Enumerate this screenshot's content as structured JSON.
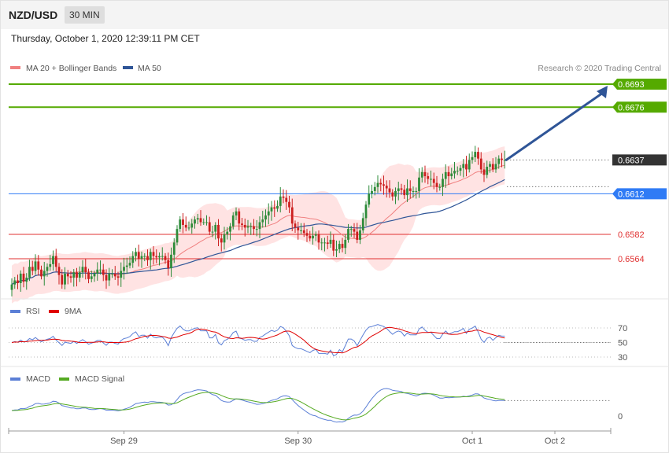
{
  "header": {
    "symbol": "NZD/USD",
    "timeframe": "30 MIN",
    "datetime": "Thursday, October 1, 2020 12:39:11 PM CET"
  },
  "legend": {
    "ma20": {
      "label": "MA 20 + Bollinger Bands",
      "color": "#f08080"
    },
    "ma50": {
      "label": "MA 50",
      "color": "#2f5597"
    },
    "credit": "Research © 2020 Trading Central"
  },
  "rsi_legend": {
    "rsi": {
      "label": "RSI",
      "color": "#5b7fd6"
    },
    "ma9": {
      "label": "9MA",
      "color": "#e00000"
    }
  },
  "macd_legend": {
    "macd": {
      "label": "MACD",
      "color": "#5b7fd6"
    },
    "signal": {
      "label": "MACD Signal",
      "color": "#55aa22"
    }
  },
  "chart_data": [
    {
      "type": "candlestick",
      "panel": "price",
      "series_names": [
        "MA 20 + Bollinger Bands",
        "MA 50"
      ],
      "x_ticks": [
        "Sep 29",
        "Sep 30",
        "Oct 1",
        "Oct 2"
      ],
      "last_price": {
        "label": "0.6637",
        "value": 0.6637,
        "color": "#333333"
      },
      "levels": [
        {
          "label": "0.6693",
          "value": 0.6693,
          "color": "#55aa00",
          "kind": "resistance"
        },
        {
          "label": "0.6676",
          "value": 0.6676,
          "color": "#55aa00",
          "kind": "resistance"
        },
        {
          "label": "0.6612",
          "value": 0.6612,
          "color": "#2f7bf5",
          "kind": "pivot"
        },
        {
          "label": "0.6582",
          "value": 0.6582,
          "color": "#e03030",
          "kind": "support"
        },
        {
          "label": "0.6564",
          "value": 0.6564,
          "color": "#e03030",
          "kind": "support"
        }
      ],
      "projection": {
        "from": 0.6637,
        "to": 0.6693,
        "direction": "up",
        "color": "#2f5597"
      },
      "closes": [
        0.6545,
        0.6548,
        0.6546,
        0.6553,
        0.6547,
        0.655,
        0.6558,
        0.6555,
        0.6562,
        0.6556,
        0.6551,
        0.6555,
        0.6558,
        0.656,
        0.6566,
        0.6558,
        0.6552,
        0.6545,
        0.6553,
        0.6551,
        0.655,
        0.6554,
        0.655,
        0.6554,
        0.6558,
        0.6554,
        0.6549,
        0.6551,
        0.6553,
        0.6556,
        0.6556,
        0.6552,
        0.6548,
        0.6553,
        0.6553,
        0.6551,
        0.655,
        0.6555,
        0.6558,
        0.6559,
        0.6561,
        0.6566,
        0.6569,
        0.6564,
        0.6566,
        0.6566,
        0.6563,
        0.6569,
        0.6566,
        0.6565,
        0.6566,
        0.6566,
        0.6563,
        0.6557,
        0.6567,
        0.6576,
        0.6586,
        0.6593,
        0.6589,
        0.6587,
        0.6587,
        0.659,
        0.6593,
        0.6594,
        0.6591,
        0.6591,
        0.6591,
        0.6584,
        0.6584,
        0.6589,
        0.6579,
        0.6576,
        0.6582,
        0.6584,
        0.6588,
        0.6596,
        0.6599,
        0.659,
        0.6589,
        0.6587,
        0.6588,
        0.6588,
        0.6586,
        0.6586,
        0.6591,
        0.6593,
        0.6596,
        0.6599,
        0.6602,
        0.6601,
        0.6603,
        0.661,
        0.6609,
        0.6606,
        0.6602,
        0.659,
        0.6587,
        0.6585,
        0.6585,
        0.6583,
        0.6581,
        0.6579,
        0.6581,
        0.6582,
        0.6576,
        0.6576,
        0.6576,
        0.6575,
        0.6578,
        0.657,
        0.6571,
        0.6575,
        0.6572,
        0.6578,
        0.6586,
        0.6586,
        0.6584,
        0.6578,
        0.6585,
        0.6594,
        0.6604,
        0.6612,
        0.6614,
        0.6617,
        0.662,
        0.6619,
        0.6618,
        0.6616,
        0.6613,
        0.661,
        0.6614,
        0.6616,
        0.6615,
        0.6611,
        0.6616,
        0.6614,
        0.6614,
        0.6614,
        0.6624,
        0.6628,
        0.6625,
        0.6623,
        0.6623,
        0.662,
        0.6617,
        0.6617,
        0.6623,
        0.6628,
        0.6625,
        0.6627,
        0.6629,
        0.6629,
        0.6631,
        0.6634,
        0.663,
        0.6637,
        0.6639,
        0.6643,
        0.6638,
        0.663,
        0.6626,
        0.6632,
        0.6634,
        0.663,
        0.6634,
        0.6638,
        0.6637,
        0.6637
      ]
    },
    {
      "type": "line",
      "panel": "RSI",
      "series_names": [
        "RSI",
        "9MA"
      ],
      "y_ticks": [
        70,
        50,
        30
      ],
      "last_value": 50
    },
    {
      "type": "line",
      "panel": "MACD",
      "series_names": [
        "MACD",
        "MACD Signal"
      ],
      "y_ticks": [
        0
      ]
    }
  ]
}
